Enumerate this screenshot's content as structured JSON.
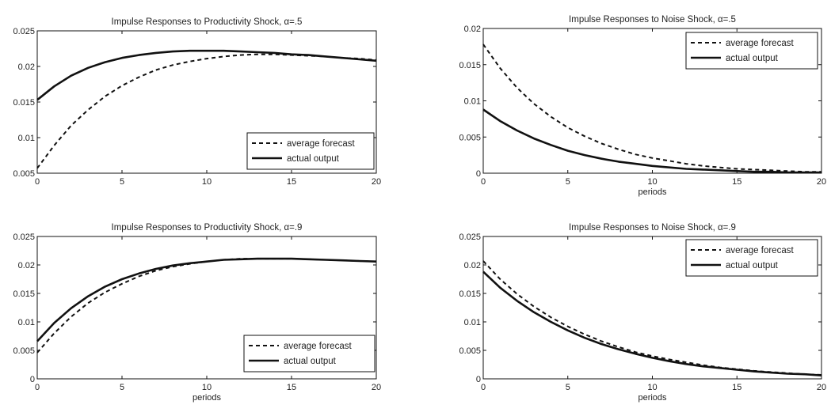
{
  "chart_data": [
    {
      "type": "line",
      "title": "Impulse Responses to Productivity Shock, α=.5",
      "xlabel": "",
      "ylabel": "",
      "xlim": [
        0,
        20
      ],
      "ylim": [
        0.005,
        0.025
      ],
      "xticks": [
        "0",
        "5",
        "10",
        "15",
        "20"
      ],
      "yticks": [
        "0.005",
        "0.01",
        "0.015",
        "0.02",
        "0.025"
      ],
      "legend_position": "bottom-right",
      "x": [
        0,
        1,
        2,
        3,
        4,
        5,
        6,
        7,
        8,
        9,
        10,
        11,
        12,
        13,
        14,
        15,
        16,
        17,
        18,
        19,
        20
      ],
      "series": [
        {
          "name": "average forecast",
          "style": "dashed",
          "values": [
            0.0057,
            0.0089,
            0.0117,
            0.0139,
            0.0158,
            0.0173,
            0.0185,
            0.0195,
            0.0202,
            0.0207,
            0.0211,
            0.0214,
            0.0216,
            0.0217,
            0.0217,
            0.0216,
            0.0215,
            0.0214,
            0.0212,
            0.0211,
            0.0209
          ]
        },
        {
          "name": "actual output",
          "style": "solid",
          "values": [
            0.0153,
            0.0172,
            0.0187,
            0.0198,
            0.0206,
            0.0212,
            0.0216,
            0.0219,
            0.0221,
            0.0222,
            0.0222,
            0.0222,
            0.0221,
            0.022,
            0.0219,
            0.0217,
            0.0216,
            0.0214,
            0.0212,
            0.021,
            0.0208
          ]
        }
      ]
    },
    {
      "type": "line",
      "title": "Impulse Responses to Noise Shock, α=.5",
      "xlabel": "periods",
      "ylabel": "",
      "xlim": [
        0,
        20
      ],
      "ylim": [
        0,
        0.02
      ],
      "xticks": [
        "0",
        "5",
        "10",
        "15",
        "20"
      ],
      "yticks": [
        "0",
        "0.005",
        "0.01",
        "0.015",
        "0.02"
      ],
      "legend_position": "top-right",
      "x": [
        0,
        1,
        2,
        3,
        4,
        5,
        6,
        7,
        8,
        9,
        10,
        11,
        12,
        13,
        14,
        15,
        16,
        17,
        18,
        19,
        20
      ],
      "series": [
        {
          "name": "average forecast",
          "style": "dashed",
          "values": [
            0.0178,
            0.0145,
            0.0118,
            0.0096,
            0.0078,
            0.0063,
            0.0051,
            0.0041,
            0.0033,
            0.0026,
            0.0021,
            0.0017,
            0.0013,
            0.001,
            0.0008,
            0.0006,
            0.0005,
            0.0004,
            0.0003,
            0.0002,
            0.0002
          ]
        },
        {
          "name": "actual output",
          "style": "solid",
          "values": [
            0.0088,
            0.0072,
            0.0059,
            0.0048,
            0.0039,
            0.0031,
            0.0025,
            0.002,
            0.0016,
            0.0013,
            0.001,
            0.0008,
            0.0006,
            0.0005,
            0.0004,
            0.0003,
            0.0002,
            0.0002,
            0.0001,
            0.0001,
            0.0001
          ]
        }
      ]
    },
    {
      "type": "line",
      "title": "Impulse Responses to Productivity Shock, α=.9",
      "xlabel": "periods",
      "ylabel": "",
      "xlim": [
        0,
        20
      ],
      "ylim": [
        0,
        0.025
      ],
      "xticks": [
        "0",
        "5",
        "10",
        "15",
        "20"
      ],
      "yticks": [
        "0",
        "0.005",
        "0.01",
        "0.015",
        "0.02",
        "0.025"
      ],
      "legend_position": "bottom-right",
      "x": [
        0,
        1,
        2,
        3,
        4,
        5,
        6,
        7,
        8,
        9,
        10,
        11,
        12,
        13,
        14,
        15,
        16,
        17,
        18,
        19,
        20
      ],
      "series": [
        {
          "name": "average forecast",
          "style": "dashed",
          "values": [
            0.0046,
            0.008,
            0.0109,
            0.0133,
            0.0152,
            0.0167,
            0.018,
            0.019,
            0.0197,
            0.0202,
            0.0206,
            0.0209,
            0.0211,
            0.0211,
            0.0211,
            0.0211,
            0.021,
            0.0209,
            0.0208,
            0.0207,
            0.0206
          ]
        },
        {
          "name": "actual output",
          "style": "solid",
          "values": [
            0.0066,
            0.0098,
            0.0124,
            0.0145,
            0.0162,
            0.0175,
            0.0185,
            0.0193,
            0.0199,
            0.0203,
            0.0206,
            0.0209,
            0.021,
            0.0211,
            0.0211,
            0.0211,
            0.021,
            0.0209,
            0.0208,
            0.0207,
            0.0206
          ]
        }
      ]
    },
    {
      "type": "line",
      "title": "Impulse Responses to Noise Shock, α=.9",
      "xlabel": "periods",
      "ylabel": "",
      "xlim": [
        0,
        20
      ],
      "ylim": [
        0,
        0.025
      ],
      "xticks": [
        "0",
        "5",
        "10",
        "15",
        "20"
      ],
      "yticks": [
        "0",
        "0.005",
        "0.01",
        "0.015",
        "0.02",
        "0.025"
      ],
      "legend_position": "top-right",
      "x": [
        0,
        1,
        2,
        3,
        4,
        5,
        6,
        7,
        8,
        9,
        10,
        11,
        12,
        13,
        14,
        15,
        16,
        17,
        18,
        19,
        20
      ],
      "series": [
        {
          "name": "average forecast",
          "style": "dashed",
          "values": [
            0.0207,
            0.0175,
            0.0149,
            0.0127,
            0.0108,
            0.0092,
            0.0078,
            0.0066,
            0.0056,
            0.0047,
            0.004,
            0.0034,
            0.0029,
            0.0024,
            0.002,
            0.0017,
            0.0014,
            0.0012,
            0.001,
            0.0008,
            0.0007
          ]
        },
        {
          "name": "actual output",
          "style": "solid",
          "values": [
            0.0188,
            0.016,
            0.0137,
            0.0117,
            0.01,
            0.0085,
            0.0072,
            0.0061,
            0.0052,
            0.0044,
            0.0037,
            0.0031,
            0.0026,
            0.0022,
            0.0019,
            0.0016,
            0.0013,
            0.0011,
            0.0009,
            0.0008,
            0.0006
          ]
        }
      ]
    }
  ]
}
